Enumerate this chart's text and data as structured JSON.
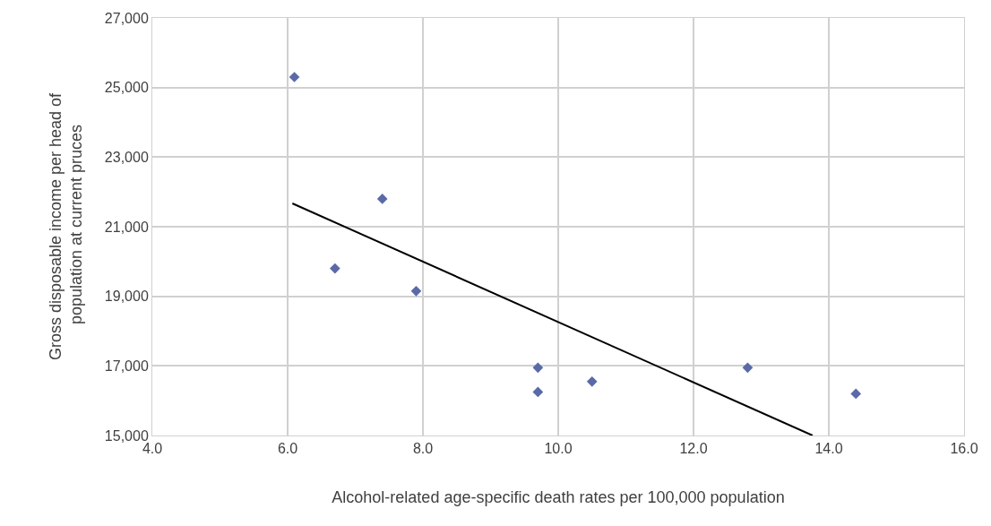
{
  "chart_data": {
    "type": "scatter",
    "xlabel": "Alcohol-related age-specific death rates per 100,000 population",
    "ylabel": "Gross disposable income per head of population at current pruces",
    "x": [
      6.1,
      6.7,
      7.4,
      7.9,
      9.7,
      9.7,
      10.5,
      12.8,
      14.4
    ],
    "series": [
      {
        "color": "#5a6aa8",
        "values": [
          25300,
          19800,
          21800,
          19150,
          16950,
          16250,
          16550,
          16950,
          16200
        ]
      },
      {
        "type": "line",
        "marker": "none",
        "color": "#000000",
        "x": [
          6.07,
          13.76
        ],
        "values": [
          21670,
          15000
        ]
      }
    ],
    "xlim": [
      4,
      16
    ],
    "xticks": [
      {
        "value": 4,
        "label": "4.0"
      },
      {
        "value": 6,
        "label": "6.0"
      },
      {
        "value": 8,
        "label": "8.0"
      },
      {
        "value": 10,
        "label": "10.0"
      },
      {
        "value": 12,
        "label": "12.0"
      },
      {
        "value": 14,
        "label": "14.0"
      },
      {
        "value": 16,
        "label": "16.0"
      }
    ],
    "ylim": [
      15000,
      27000
    ],
    "yticks": [
      {
        "value": 15000,
        "label": "15,000"
      },
      {
        "value": 17000,
        "label": "17,000"
      },
      {
        "value": 19000,
        "label": "19,000"
      },
      {
        "value": 21000,
        "label": "21,000"
      },
      {
        "value": 23000,
        "label": "23,000"
      },
      {
        "value": 25000,
        "label": "25,000"
      },
      {
        "value": 27000,
        "label": "27,000"
      }
    ],
    "grid": true,
    "marker": "diamond",
    "line_style": "solid"
  }
}
